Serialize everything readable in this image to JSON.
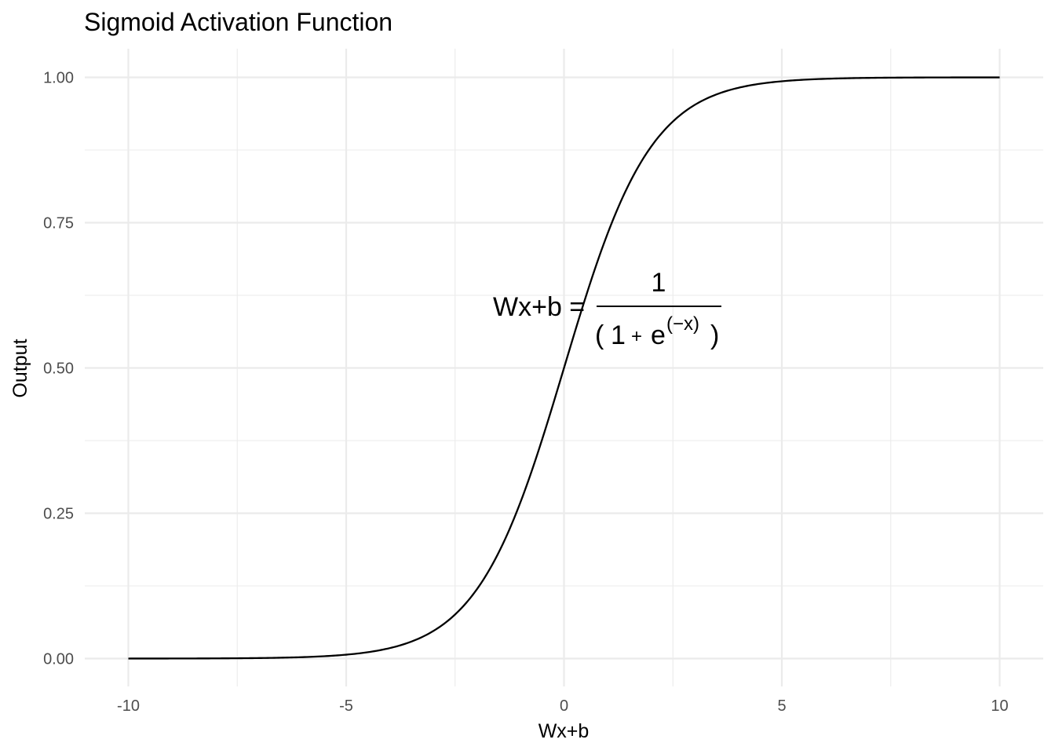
{
  "chart_data": {
    "type": "line",
    "title": "Sigmoid Activation Function",
    "xlabel": "Wx+b",
    "ylabel": "Output",
    "xlim": [
      -10,
      10
    ],
    "ylim": [
      0,
      1
    ],
    "x_ticks": [
      -10,
      -5,
      0,
      5,
      10
    ],
    "x_tick_labels": [
      "-10",
      "-5",
      "0",
      "5",
      "10"
    ],
    "y_ticks": [
      0,
      0.25,
      0.5,
      0.75,
      1
    ],
    "y_tick_labels": [
      "0.00",
      "0.25",
      "0.50",
      "0.75",
      "1.00"
    ],
    "grid": true,
    "series": [
      {
        "x": [
          -10,
          -9,
          -8,
          -7,
          -6,
          -5,
          -4.5,
          -4,
          -3.5,
          -3,
          -2.5,
          -2,
          -1.5,
          -1,
          -0.5,
          0,
          0.5,
          1,
          1.5,
          2,
          2.5,
          3,
          3.5,
          4,
          4.5,
          5,
          6,
          7,
          8,
          9,
          10
        ],
        "y": [
          4.54e-05,
          0.0001234,
          0.0003354,
          0.0009111,
          0.002473,
          0.006693,
          0.01099,
          0.01799,
          0.02931,
          0.04743,
          0.07586,
          0.1192,
          0.1824,
          0.2689,
          0.3775,
          0.5,
          0.6225,
          0.7311,
          0.8176,
          0.8808,
          0.9241,
          0.9526,
          0.9707,
          0.982,
          0.989,
          0.9933,
          0.9975,
          0.9991,
          0.9997,
          0.9999,
          0.99995
        ],
        "color": "#000000"
      }
    ],
    "annotation": {
      "lhs": "Wx+b =",
      "numerator": "1",
      "denominator_open": "(",
      "denominator_one": "1",
      "denominator_plus": "+",
      "denominator_e": "e",
      "exponent": "(−x)",
      "denominator_close": ")",
      "x": 0,
      "y": 0.6
    }
  }
}
